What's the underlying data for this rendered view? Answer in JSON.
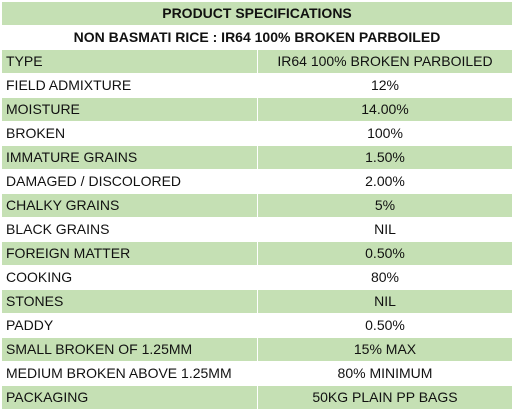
{
  "title": "PRODUCT SPECIFICATIONS",
  "subtitle": "NON BASMATI RICE : IR64 100% BROKEN PARBOILED",
  "colors": {
    "band_green": "#c5e0b4",
    "band_white": "#ffffff",
    "text": "#111111"
  },
  "rows": [
    {
      "parameter": "TYPE",
      "value": "IR64 100% BROKEN PARBOILED"
    },
    {
      "parameter": "FIELD ADMIXTURE",
      "value": "12%"
    },
    {
      "parameter": "MOISTURE",
      "value": "14.00%"
    },
    {
      "parameter": "BROKEN",
      "value": "100%"
    },
    {
      "parameter": "IMMATURE GRAINS",
      "value": "1.50%"
    },
    {
      "parameter": "DAMAGED / DISCOLORED",
      "value": "2.00%"
    },
    {
      "parameter": "CHALKY GRAINS",
      "value": "5%"
    },
    {
      "parameter": "BLACK GRAINS",
      "value": "NIL"
    },
    {
      "parameter": "FOREIGN MATTER",
      "value": "0.50%"
    },
    {
      "parameter": "COOKING",
      "value": "80%"
    },
    {
      "parameter": "STONES",
      "value": "NIL"
    },
    {
      "parameter": "PADDY",
      "value": "0.50%"
    },
    {
      "parameter": "SMALL BROKEN OF 1.25MM",
      "value": "15% MAX"
    },
    {
      "parameter": "MEDIUM BROKEN ABOVE 1.25MM",
      "value": "80% MINIMUM"
    },
    {
      "parameter": "PACKAGING",
      "value": "50KG PLAIN PP BAGS"
    }
  ]
}
